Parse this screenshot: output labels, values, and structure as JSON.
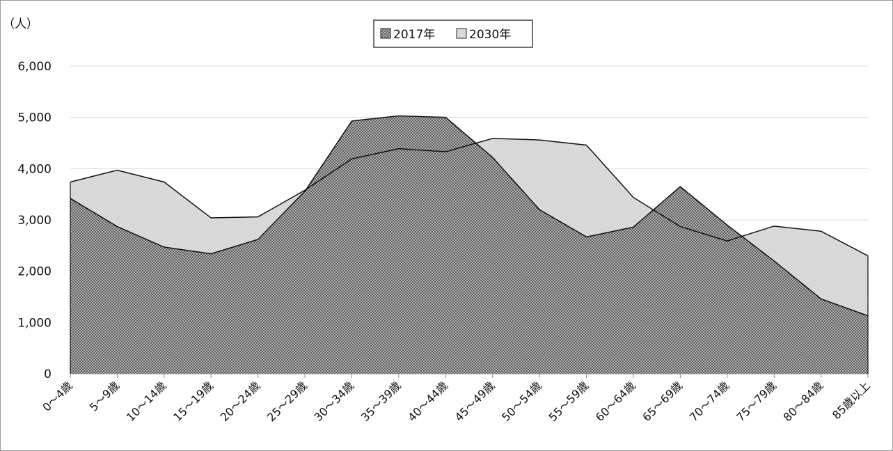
{
  "chart_data": {
    "type": "area",
    "unit_label": "（人）",
    "categories": [
      "0～4歳",
      "5～9歳",
      "10～14歳",
      "15～19歳",
      "20～24歳",
      "25～29歳",
      "30～34歳",
      "35～39歳",
      "40～44歳",
      "45～49歳",
      "50～54歳",
      "55～59歳",
      "60～64歳",
      "65～69歳",
      "70～74歳",
      "75～79歳",
      "80～84歳",
      "85歳以上"
    ],
    "series": [
      {
        "name": "2017年",
        "pattern": "dark-checker",
        "values": [
          3420,
          2870,
          2470,
          2340,
          2620,
          3560,
          4930,
          5030,
          5000,
          4220,
          3200,
          2670,
          2860,
          3650,
          2900,
          2200,
          1460,
          1130
        ]
      },
      {
        "name": "2030年",
        "pattern": "light-checker",
        "values": [
          3740,
          3970,
          3740,
          3040,
          3060,
          3580,
          4190,
          4390,
          4330,
          4590,
          4560,
          4460,
          3440,
          2870,
          2590,
          2880,
          2780,
          2300
        ]
      }
    ],
    "y_ticks": [
      "0",
      "1,000",
      "2,000",
      "3,000",
      "4,000",
      "5,000",
      "6,000"
    ],
    "ylim": [
      0,
      6000
    ],
    "grid": true,
    "legend_position": "top-center",
    "colors": {
      "dark_fill": "#8c8c8c",
      "light_fill": "#d9d9d9",
      "grid": "#d9d9d9",
      "line": "#111111"
    }
  }
}
